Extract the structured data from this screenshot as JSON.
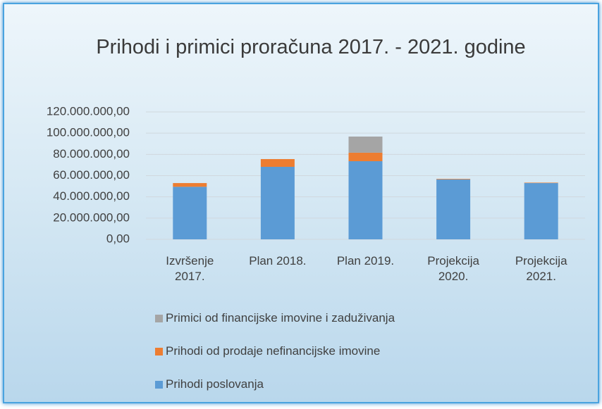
{
  "chart_data": {
    "type": "bar",
    "stacked": true,
    "title": "Prihodi i primici proračuna 2017. - 2021. godine",
    "categories": [
      "Izvršenje 2017.",
      "Plan 2018.",
      "Plan 2019.",
      "Projekcija 2020.",
      "Projekcija 2021."
    ],
    "series": [
      {
        "name": "Prihodi poslovanja",
        "color": "#5b9bd5",
        "values": [
          49500000,
          68300000,
          73600000,
          56500000,
          53000000
        ]
      },
      {
        "name": "Prihodi od prodaje nefinancijske imovine",
        "color": "#ed7d31",
        "values": [
          3500000,
          7300000,
          8000000,
          500000,
          400000
        ]
      },
      {
        "name": "Primici od financijske imovine i zaduživanja",
        "color": "#a5a5a5",
        "values": [
          0,
          0,
          15200000,
          0,
          0
        ]
      }
    ],
    "ylim": [
      0,
      120000000
    ],
    "yticks": [
      {
        "value": 0,
        "label": "0,00"
      },
      {
        "value": 20000000,
        "label": "20.000.000,00"
      },
      {
        "value": 40000000,
        "label": "40.000.000,00"
      },
      {
        "value": 60000000,
        "label": "60.000.000,00"
      },
      {
        "value": 80000000,
        "label": "80.000.000,00"
      },
      {
        "value": 100000000,
        "label": "100.000.000,00"
      },
      {
        "value": 120000000,
        "label": "120.000.000,00"
      }
    ],
    "grid": true,
    "legend": "bottom"
  }
}
